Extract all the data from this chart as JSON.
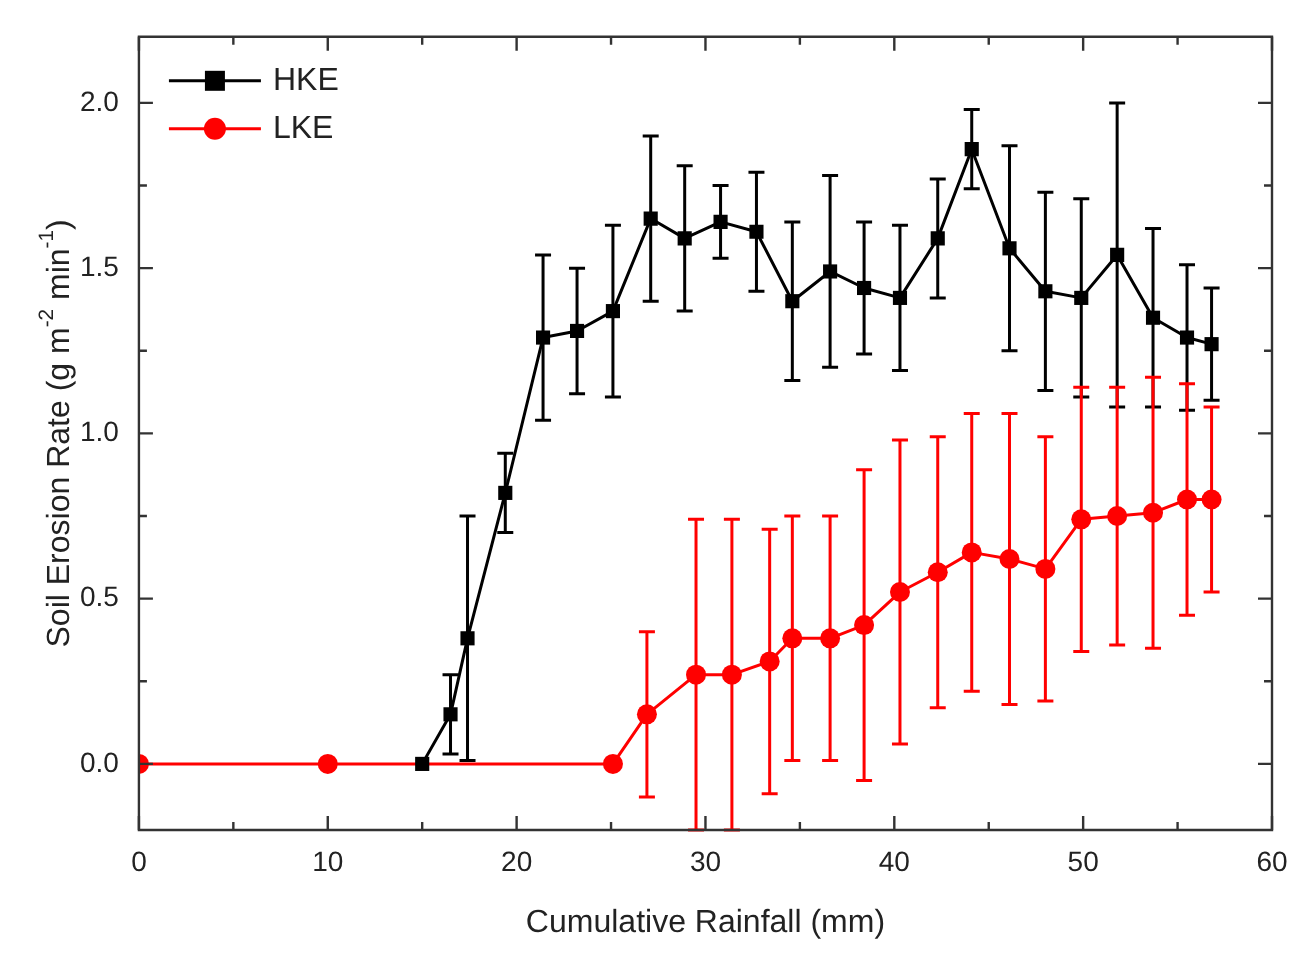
{
  "chart_data": {
    "type": "line",
    "xlabel": "Cumulative Rainfall (mm)",
    "ylabel": "Soil Erosion Rate (g m$^{-2}$ min$^{-1}$)",
    "xlim": [
      0,
      60
    ],
    "xticks": [
      0,
      {
        "value": 5,
        "label": null
      },
      10,
      {
        "value": 15,
        "label": null
      },
      20,
      {
        "value": 25,
        "label": null
      },
      30,
      {
        "value": 35,
        "label": null
      },
      40,
      {
        "value": 45,
        "label": null
      },
      50,
      {
        "value": 55,
        "label": null
      },
      60
    ],
    "ylim": [
      -0.2,
      2.2
    ],
    "yticks": [
      {
        "value": 0,
        "label": "0.0"
      },
      {
        "value": 0.25,
        "label": null
      },
      {
        "value": 0.5,
        "label": "0.5"
      },
      {
        "value": 0.75,
        "label": null
      },
      {
        "value": 1,
        "label": "1.0"
      },
      {
        "value": 1.25,
        "label": null
      },
      {
        "value": 1.5,
        "label": "1.5"
      },
      {
        "value": 1.75,
        "label": null
      },
      {
        "value": 2,
        "label": "2.0"
      }
    ],
    "grid": false,
    "legend": "top left",
    "line_style": "solid",
    "series": [
      {
        "name": "HKE",
        "color": "#000000",
        "marker": "square",
        "x": [
          15,
          16.5,
          17.4,
          19.4,
          21.4,
          23.2,
          25.1,
          27.1,
          28.9,
          30.8,
          32.7,
          34.6,
          36.6,
          38.4,
          40.3,
          42.3,
          44.1,
          46.1,
          48.0,
          49.9,
          51.8,
          53.7,
          55.5,
          56.8
        ],
        "values": [
          0,
          0.15,
          0.38,
          0.82,
          1.29,
          1.31,
          1.37,
          1.65,
          1.59,
          1.64,
          1.61,
          1.4,
          1.49,
          1.44,
          1.41,
          1.59,
          1.86,
          1.56,
          1.43,
          1.41,
          1.54,
          1.35,
          1.29,
          1.27
        ],
        "errors": [
          null,
          0.12,
          0.37,
          0.12,
          0.25,
          0.19,
          0.26,
          0.25,
          0.22,
          0.11,
          0.18,
          0.24,
          0.29,
          0.2,
          0.22,
          0.18,
          0.12,
          0.31,
          0.3,
          0.3,
          0.46,
          0.27,
          0.22,
          0.17
        ]
      },
      {
        "name": "LKE",
        "color": "#ff0000",
        "marker": "circle",
        "x": [
          0,
          10,
          25.1,
          26.9,
          29.5,
          31.4,
          33.4,
          34.6,
          36.6,
          38.4,
          40.3,
          42.3,
          44.1,
          46.1,
          48.0,
          49.9,
          51.8,
          53.7,
          55.5,
          56.8
        ],
        "values": [
          0,
          0,
          0,
          0.15,
          0.27,
          0.27,
          0.31,
          0.38,
          0.38,
          0.42,
          0.52,
          0.58,
          0.64,
          0.62,
          0.59,
          0.74,
          0.75,
          0.76,
          0.8,
          0.8
        ],
        "errors": [
          null,
          null,
          null,
          0.25,
          0.47,
          0.47,
          0.4,
          0.37,
          0.37,
          0.47,
          0.46,
          0.41,
          0.42,
          0.44,
          0.4,
          0.4,
          0.39,
          0.41,
          0.35,
          0.28
        ]
      }
    ]
  }
}
